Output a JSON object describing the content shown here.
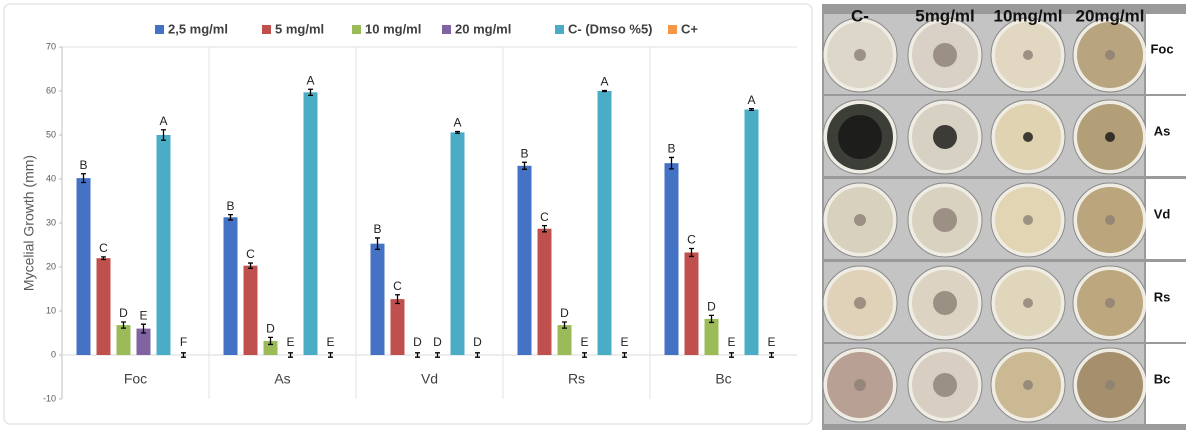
{
  "chart_data": {
    "type": "bar",
    "y_label": "Mycelial Growth (mm)",
    "categories": [
      "Foc",
      "As",
      "Vd",
      "Rs",
      "Bc"
    ],
    "ylim": [
      -10,
      70
    ],
    "yticks": [
      -10,
      0,
      10,
      20,
      30,
      40,
      50,
      60,
      70
    ],
    "series": [
      {
        "name": "2,5 mg/ml",
        "color": "#4472c4",
        "values": [
          40.2,
          31.3,
          25.3,
          43,
          43.6
        ],
        "errors": [
          1,
          0.6,
          1.3,
          0.8,
          1.3
        ],
        "letters": [
          "B",
          "B",
          "B",
          "B",
          "B"
        ]
      },
      {
        "name": "5 mg/ml",
        "color": "#c0504d",
        "values": [
          22,
          20.3,
          12.7,
          28.7,
          23.3
        ],
        "errors": [
          0.3,
          0.6,
          1,
          0.7,
          0.9
        ],
        "letters": [
          "C",
          "C",
          "C",
          "C",
          "C"
        ]
      },
      {
        "name": "10 mg/ml",
        "color": "#9bbb59",
        "values": [
          6.8,
          3.2,
          0,
          6.8,
          8.2
        ],
        "errors": [
          0.7,
          0.8,
          0.5,
          0.7,
          0.8
        ],
        "letters": [
          "D",
          "D",
          "D",
          "D",
          "D"
        ]
      },
      {
        "name": "20 mg/ml",
        "color": "#8064a2",
        "values": [
          6,
          0,
          0,
          0,
          0
        ],
        "errors": [
          1,
          0.5,
          0.5,
          0.5,
          0.5
        ],
        "letters": [
          "E",
          "E",
          "D",
          "E",
          "E"
        ]
      },
      {
        "name": "C- (Dmso %5)",
        "color": "#4bacc6",
        "values": [
          50,
          59.7,
          50.6,
          60,
          55.8
        ],
        "errors": [
          1.2,
          0.7,
          0.2,
          0.1,
          0.2
        ],
        "letters": [
          "A",
          "A",
          "A",
          "A",
          "A"
        ]
      },
      {
        "name": "C+",
        "color": "#f79646",
        "values": [
          0,
          0,
          0,
          0,
          0
        ],
        "errors": [
          0.5,
          0.5,
          0.5,
          0.5,
          0.5
        ],
        "letters": [
          "F",
          "E",
          "D",
          "E",
          "E"
        ]
      }
    ]
  },
  "photo_panel": {
    "columns": [
      "C-",
      "5mg/ml",
      "10mg/ml",
      "20mg/ml"
    ],
    "rows": [
      "Foc",
      "As",
      "Vd",
      "Rs",
      "Bc"
    ]
  }
}
